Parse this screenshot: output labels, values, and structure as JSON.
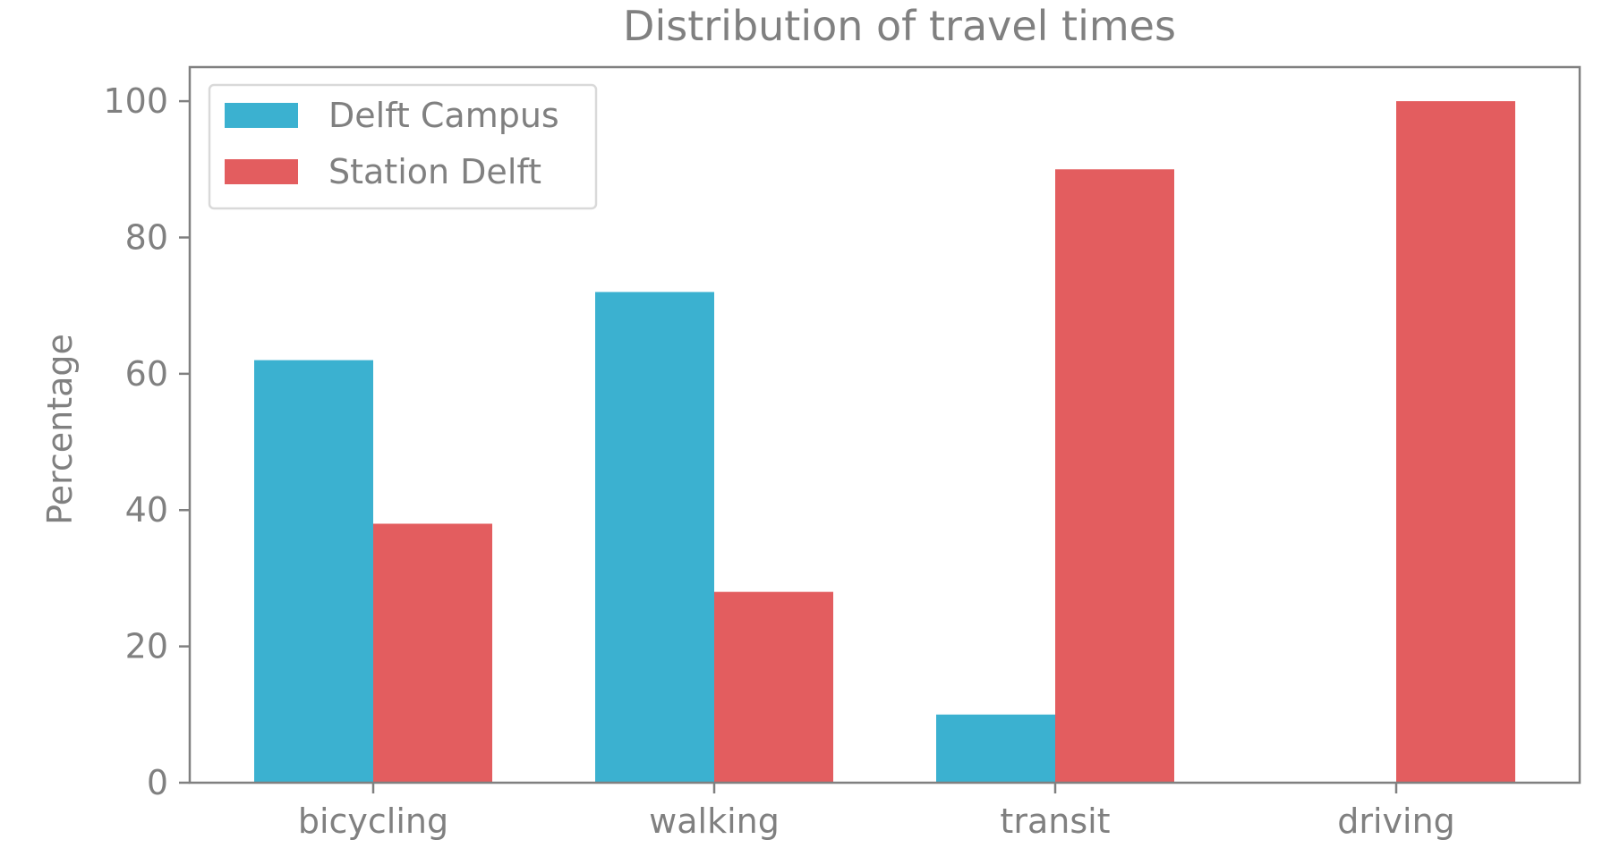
{
  "chart_data": {
    "type": "bar",
    "title": "Distribution of travel times",
    "xlabel": "",
    "ylabel": "Percentage",
    "categories": [
      "bicycling",
      "walking",
      "transit",
      "driving"
    ],
    "series": [
      {
        "name": "Delft Campus",
        "color": "#3bb1d0",
        "values": [
          62,
          72,
          10,
          0
        ]
      },
      {
        "name": "Station Delft",
        "color": "#e35d5f",
        "values": [
          38,
          28,
          90,
          100
        ]
      }
    ],
    "ylim": [
      0,
      105
    ],
    "yticks": [
      0,
      20,
      40,
      60,
      80,
      100
    ],
    "legend_position": "top-left",
    "grid": false
  },
  "colors": {
    "axis": "#808080",
    "text": "#808080",
    "legend_border": "#d9d9d9"
  }
}
